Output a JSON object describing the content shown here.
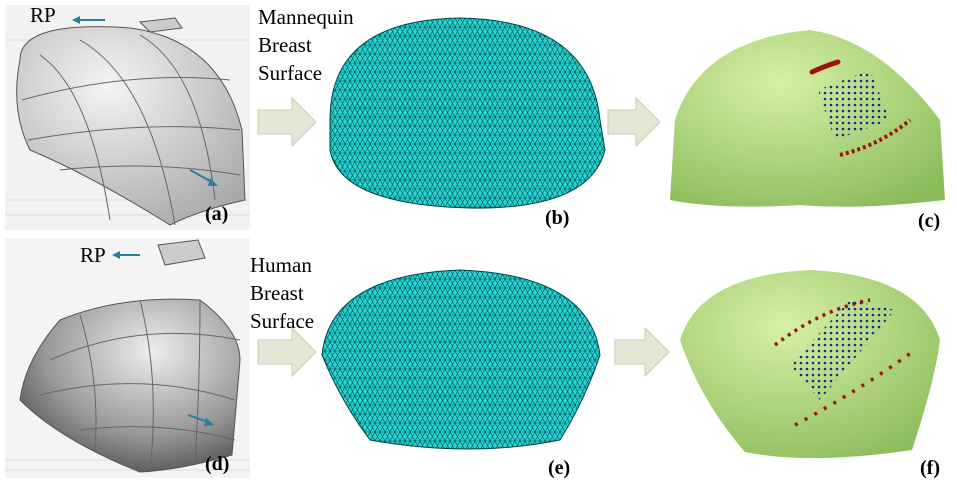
{
  "top_row": {
    "rp_label": "RP",
    "surface_label": [
      "Mannequin",
      "Breast",
      "Surface"
    ]
  },
  "bottom_row": {
    "rp_label": "RP",
    "surface_label": [
      "Human",
      "Breast",
      "Surface"
    ]
  },
  "panel_labels": [
    "(a)",
    "(b)",
    "(c)",
    "(d)",
    "(e)",
    "(f)"
  ]
}
